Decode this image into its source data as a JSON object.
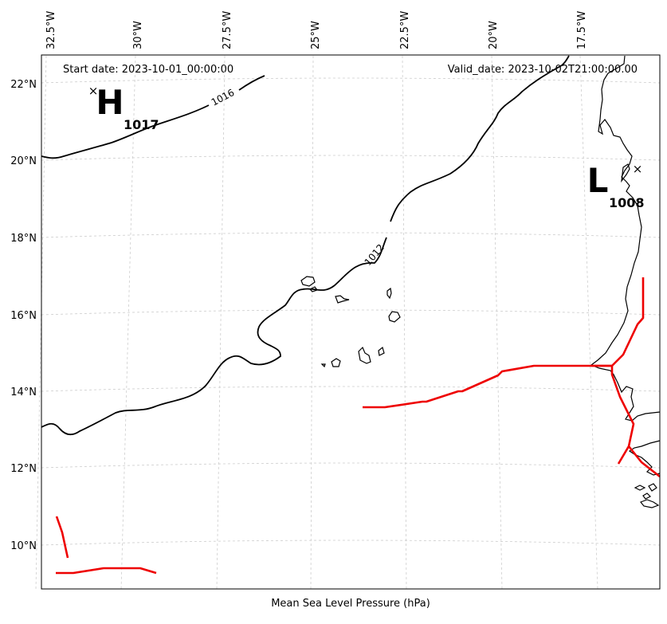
{
  "header": {
    "start_date": "Start date: 2023-10-01_00:00:00",
    "valid_date": "Valid_date: 2023-10-02T21:00:00.00"
  },
  "footer": {
    "caption": "Mean Sea Level Pressure (hPa)"
  },
  "axes": {
    "lon_ticks": [
      "32.5°W",
      "30°W",
      "27.5°W",
      "25°W",
      "22.5°W",
      "20°W",
      "17.5°W"
    ],
    "lat_ticks": [
      "22°N",
      "20°N",
      "18°N",
      "16°N",
      "14°N",
      "12°N",
      "10°N"
    ]
  },
  "pressure_centers": [
    {
      "letter": "H",
      "value": "1017"
    },
    {
      "letter": "L",
      "value": "1008"
    }
  ],
  "isobars": [
    {
      "label": "1016"
    },
    {
      "label": "1012"
    }
  ],
  "colors": {
    "isobar": "#000000",
    "front": "#ee0000",
    "coastline": "#000000",
    "grid": "#cccccc"
  }
}
